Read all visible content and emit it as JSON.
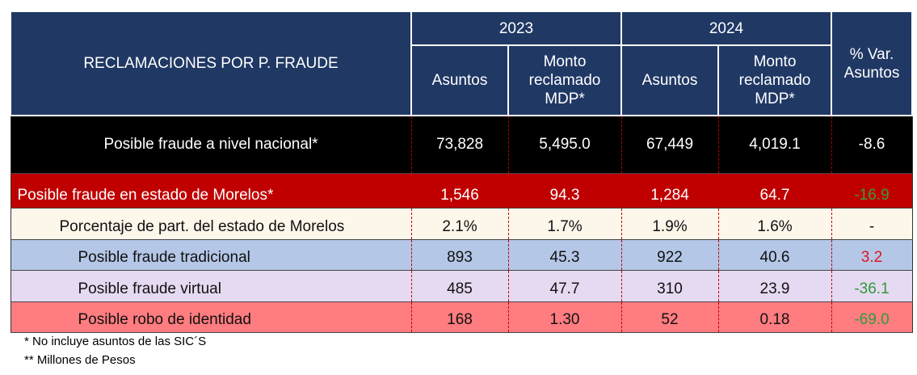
{
  "table": {
    "title": "RECLAMACIONES POR P. FRAUDE",
    "years": [
      "2023",
      "2024"
    ],
    "subheaders": [
      "Asuntos",
      "Monto reclamado MDP*",
      "Asuntos",
      "Monto reclamado MDP*"
    ],
    "variation_header": "% Var. Asuntos",
    "rows": [
      [
        "Posible fraude a nivel nacional*",
        "73,828",
        "5,495.0",
        "67,449",
        "4,019.1",
        "-8.6"
      ],
      [
        "Posible fraude en estado de Morelos*",
        "1,546",
        "94.3",
        "1,284",
        "64.7",
        "-16.9"
      ],
      [
        "Porcentaje de part.  del estado de Morelos",
        "2.1%",
        "1.7%",
        "1.9%",
        "1.6%",
        "-"
      ],
      [
        "Posible fraude tradicional",
        "893",
        "45.3",
        "922",
        "40.6",
        "3.2"
      ],
      [
        "Posible fraude virtual",
        "485",
        "47.7",
        "310",
        "23.9",
        "-36.1"
      ],
      [
        "Posible robo de identidad",
        "168",
        "1.30",
        "52",
        "0.18",
        "-69.0"
      ]
    ]
  },
  "footnotes": [
    "* No incluye asuntos de las SIC´S",
    "** Millones de Pesos"
  ]
}
